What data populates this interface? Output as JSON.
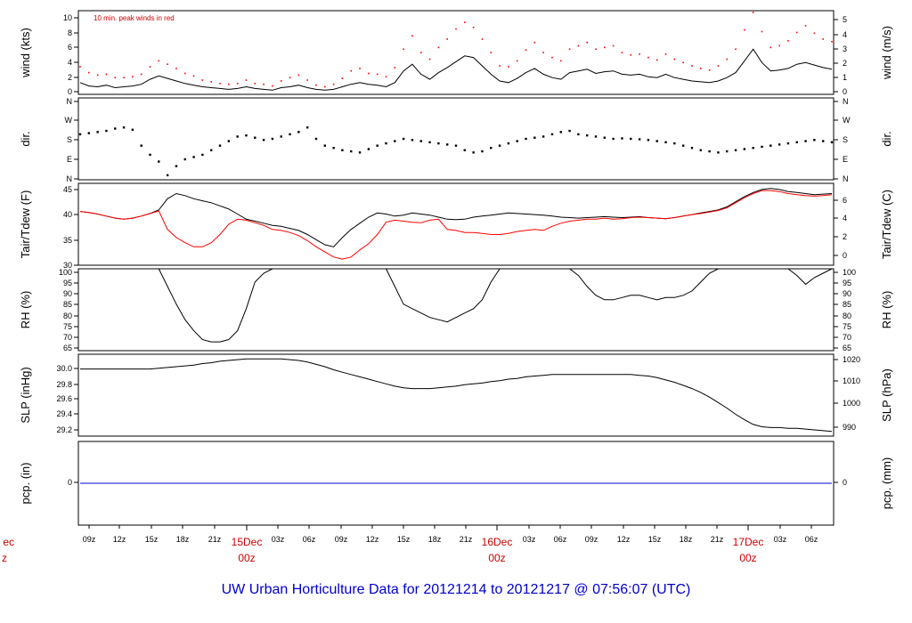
{
  "title": "UW Urban Horticulture Data for 20121214  to  20121217 @ 07:56:07  (UTC)",
  "annotation": "10 min. peak winds in red",
  "colors": {
    "primary": "#000000",
    "secondary": "#ff0000",
    "precip": "#0000cc",
    "title": "#0000cc",
    "date": "#cc0000"
  },
  "time_axis": {
    "hour_labels": [
      "09z",
      "12z",
      "15z",
      "18z",
      "21z",
      "03z",
      "06z",
      "09z",
      "12z",
      "15z",
      "18z",
      "21z",
      "03z",
      "06z",
      "09z",
      "12z",
      "15z",
      "18z",
      "21z",
      "03z",
      "06z"
    ],
    "day_labels": [
      {
        "date": "ec",
        "hour": "z"
      },
      {
        "date": "15Dec",
        "hour": "00z"
      },
      {
        "date": "16Dec",
        "hour": "00z"
      },
      {
        "date": "17Dec",
        "hour": "00z"
      }
    ]
  },
  "chart_data": [
    {
      "type": "line",
      "id": "wind",
      "ylabel": "wind (kts)",
      "ylabel_right": "wind (m/s)",
      "ylim": [
        0,
        10
      ],
      "left_ticks": [
        "0",
        "2",
        "4",
        "6",
        "8",
        "10"
      ],
      "right_ticks": [
        "0",
        "1",
        "2",
        "3",
        "4",
        "5"
      ],
      "series": [
        {
          "values": [
            1.4,
            1.0,
            0.9,
            1.1,
            0.8,
            0.9,
            1.0,
            1.2,
            1.8,
            2.2,
            1.9,
            1.6,
            1.3,
            1.1,
            0.9,
            0.8,
            0.7,
            0.6,
            0.7,
            0.9,
            0.7,
            0.6,
            0.5,
            0.8,
            0.9,
            1.1,
            0.8,
            0.6,
            0.5,
            0.6,
            0.9,
            1.2,
            1.4,
            1.2,
            1.1,
            0.9,
            1.4,
            2.8,
            3.6,
            2.4,
            1.8,
            2.6,
            3.2,
            3.9,
            4.6,
            4.4,
            3.4,
            2.4,
            1.6,
            1.4,
            1.9,
            2.6,
            3.1,
            2.4,
            2.0,
            1.8,
            2.6,
            2.8,
            3.0,
            2.5,
            2.7,
            2.8,
            2.4,
            2.3,
            2.4,
            2.1,
            2.0,
            2.4,
            2.0,
            1.8,
            1.6,
            1.5,
            1.4,
            1.6,
            2.0,
            2.6,
            4.0,
            5.4,
            3.8,
            2.8,
            2.9,
            3.1,
            3.6,
            3.8,
            3.5,
            3.2,
            3.0
          ]
        },
        {
          "values": [
            3.3,
            2.6,
            2.3,
            2.4,
            2.0,
            2.0,
            2.1,
            2.4,
            3.3,
            4.0,
            3.6,
            3.1,
            2.5,
            2.2,
            1.7,
            1.5,
            1.3,
            1.2,
            1.3,
            1.7,
            1.3,
            1.2,
            1.0,
            1.6,
            2.0,
            2.3,
            1.7,
            1.1,
            0.9,
            1.2,
            1.9,
            2.8,
            3.1,
            2.5,
            2.4,
            2.1,
            3.2,
            5.4,
            7.0,
            5.0,
            4.2,
            5.6,
            6.6,
            7.8,
            8.6,
            8.0,
            6.6,
            5.0,
            3.4,
            3.3,
            4.0,
            5.3,
            6.2,
            5.0,
            4.4,
            4.0,
            5.4,
            5.8,
            6.2,
            5.4,
            5.6,
            5.8,
            5.0,
            4.7,
            4.8,
            4.4,
            4.1,
            4.8,
            4.2,
            3.8,
            3.4,
            3.1,
            2.9,
            3.4,
            4.2,
            5.4,
            7.7,
            9.8,
            7.5,
            5.6,
            5.8,
            6.4,
            7.4,
            8.2,
            7.3,
            6.6,
            6.3
          ]
        }
      ]
    },
    {
      "type": "scatter",
      "id": "dir",
      "ylabel": "dir.",
      "ylabel_right": "dir.",
      "ylim": [
        0,
        360
      ],
      "left_ticks": [
        "N",
        "E",
        "S",
        "W",
        "N"
      ],
      "right_ticks": [
        "N",
        "E",
        "S",
        "W",
        "N"
      ],
      "series": [
        {
          "values": [
            200,
            205,
            210,
            215,
            225,
            230,
            220,
            150,
            110,
            80,
            20,
            60,
            90,
            100,
            110,
            130,
            150,
            170,
            190,
            195,
            185,
            175,
            180,
            190,
            200,
            210,
            230,
            180,
            150,
            140,
            130,
            125,
            120,
            135,
            150,
            160,
            170,
            180,
            175,
            170,
            165,
            160,
            155,
            150,
            130,
            120,
            125,
            140,
            150,
            160,
            170,
            180,
            185,
            190,
            200,
            210,
            215,
            200,
            195,
            190,
            185,
            180,
            182,
            180,
            178,
            175,
            170,
            165,
            160,
            150,
            140,
            130,
            125,
            120,
            125,
            130,
            135,
            140,
            145,
            150,
            155,
            160,
            165,
            170,
            175,
            170,
            165
          ]
        }
      ]
    },
    {
      "type": "line",
      "id": "temp",
      "ylabel": "Tair/Tdew (F)",
      "ylabel_right": "Tair/Tdew (C)",
      "ylim": [
        30,
        46
      ],
      "left_ticks": [
        "30",
        "35",
        "40",
        "45"
      ],
      "right_ticks": [
        "0",
        "2",
        "4",
        "6"
      ],
      "series": [
        {
          "values": [
            40.5,
            40.3,
            40.0,
            39.6,
            39.2,
            39.0,
            39.2,
            39.6,
            40.1,
            40.8,
            43.0,
            44.0,
            43.6,
            43.0,
            42.6,
            42.2,
            41.6,
            41.0,
            40.0,
            39.0,
            38.6,
            38.2,
            37.8,
            37.6,
            37.2,
            36.8,
            36.0,
            35.0,
            34.0,
            33.6,
            35.4,
            37.0,
            38.2,
            39.4,
            40.2,
            40.0,
            39.6,
            39.8,
            40.2,
            40.0,
            39.8,
            39.4,
            39.0,
            38.9,
            39.0,
            39.4,
            39.6,
            39.8,
            40.0,
            40.2,
            40.1,
            40.0,
            39.9,
            39.8,
            39.6,
            39.4,
            39.3,
            39.2,
            39.3,
            39.4,
            39.5,
            39.4,
            39.3,
            39.4,
            39.5,
            39.3,
            39.2,
            39.1,
            39.3,
            39.6,
            39.9,
            40.2,
            40.5,
            40.8,
            41.4,
            42.4,
            43.4,
            44.2,
            44.8,
            45.0,
            44.8,
            44.4,
            44.2,
            44.0,
            43.8,
            43.9,
            44.0
          ]
        },
        {
          "values": [
            40.5,
            40.3,
            40.0,
            39.6,
            39.2,
            39.0,
            39.2,
            39.6,
            40.1,
            40.6,
            37.0,
            35.4,
            34.4,
            33.6,
            33.6,
            34.4,
            36.0,
            38.0,
            39.0,
            38.8,
            38.3,
            37.8,
            37.0,
            36.8,
            36.4,
            35.8,
            34.8,
            33.6,
            32.6,
            31.6,
            31.2,
            31.6,
            33.0,
            34.2,
            36.0,
            38.4,
            38.8,
            38.6,
            38.4,
            38.3,
            38.8,
            39.0,
            37.0,
            36.8,
            36.4,
            36.4,
            36.2,
            36.0,
            36.0,
            36.2,
            36.6,
            36.8,
            37.0,
            36.8,
            37.6,
            38.2,
            38.6,
            38.8,
            39.0,
            39.0,
            39.2,
            39.0,
            39.1,
            39.3,
            39.4,
            39.3,
            39.2,
            39.1,
            39.3,
            39.6,
            39.9,
            40.1,
            40.4,
            40.7,
            41.2,
            42.2,
            43.2,
            44.0,
            44.6,
            44.6,
            44.4,
            44.0,
            43.8,
            43.6,
            43.5,
            43.6,
            43.8
          ]
        }
      ]
    },
    {
      "type": "line",
      "id": "rh",
      "ylabel": "RH (%)",
      "ylabel_right": "RH (%)",
      "ylim": [
        63,
        100
      ],
      "left_ticks": [
        "65",
        "70",
        "75",
        "80",
        "85",
        "90",
        "95",
        "100"
      ],
      "right_ticks": [
        "65",
        "70",
        "75",
        "80",
        "85",
        "90",
        "95",
        "100"
      ],
      "series": [
        {
          "values": [
            100,
            100,
            100,
            100,
            100,
            100,
            100,
            100,
            100,
            100,
            92,
            84,
            77,
            72,
            68,
            67,
            67,
            68,
            72,
            82,
            94,
            98,
            100,
            100,
            100,
            100,
            100,
            100,
            100,
            100,
            100,
            100,
            100,
            100,
            100,
            100,
            92,
            84,
            82,
            80,
            78,
            77,
            76,
            78,
            80,
            82,
            86,
            94,
            100,
            100,
            100,
            100,
            100,
            100,
            100,
            100,
            100,
            97,
            92,
            88,
            86,
            86,
            87,
            88,
            88,
            87,
            86,
            87,
            87,
            88,
            90,
            94,
            98,
            100,
            100,
            100,
            100,
            100,
            100,
            100,
            100,
            100,
            97,
            93,
            96,
            98,
            100
          ]
        }
      ]
    },
    {
      "type": "line",
      "id": "slp",
      "ylabel": "SLP (inHg)",
      "ylabel_right": "SLP (hPa)",
      "ylim": [
        29.1,
        30.15
      ],
      "left_ticks": [
        "29.2",
        "29.4",
        "29.6",
        "29.8",
        "30.0"
      ],
      "right_ticks": [
        "990",
        "1000",
        "1010",
        "1020"
      ],
      "series": [
        {
          "values": [
            29.96,
            29.96,
            29.96,
            29.96,
            29.96,
            29.96,
            29.96,
            29.96,
            29.96,
            29.97,
            29.98,
            29.99,
            30.0,
            30.01,
            30.03,
            30.04,
            30.06,
            30.07,
            30.08,
            30.09,
            30.09,
            30.09,
            30.09,
            30.09,
            30.08,
            30.07,
            30.05,
            30.02,
            29.99,
            29.95,
            29.92,
            29.89,
            29.86,
            29.83,
            29.8,
            29.77,
            29.74,
            29.72,
            29.71,
            29.71,
            29.71,
            29.72,
            29.73,
            29.74,
            29.76,
            29.77,
            29.78,
            29.8,
            29.81,
            29.83,
            29.84,
            29.86,
            29.87,
            29.88,
            29.89,
            29.89,
            29.89,
            29.89,
            29.89,
            29.89,
            29.89,
            29.89,
            29.89,
            29.89,
            29.88,
            29.87,
            29.85,
            29.82,
            29.79,
            29.75,
            29.71,
            29.66,
            29.6,
            29.53,
            29.46,
            29.38,
            29.31,
            29.25,
            29.22,
            29.21,
            29.21,
            29.2,
            29.2,
            29.19,
            29.18,
            29.17,
            29.16
          ]
        }
      ]
    },
    {
      "type": "line",
      "id": "pcp",
      "ylabel": "pcp. (in)",
      "ylabel_right": "pcp. (mm)",
      "ylim": [
        -1,
        1
      ],
      "left_ticks": [
        "0"
      ],
      "right_ticks": [
        "0"
      ],
      "series": [
        {
          "values": [
            0,
            0
          ]
        }
      ]
    }
  ]
}
